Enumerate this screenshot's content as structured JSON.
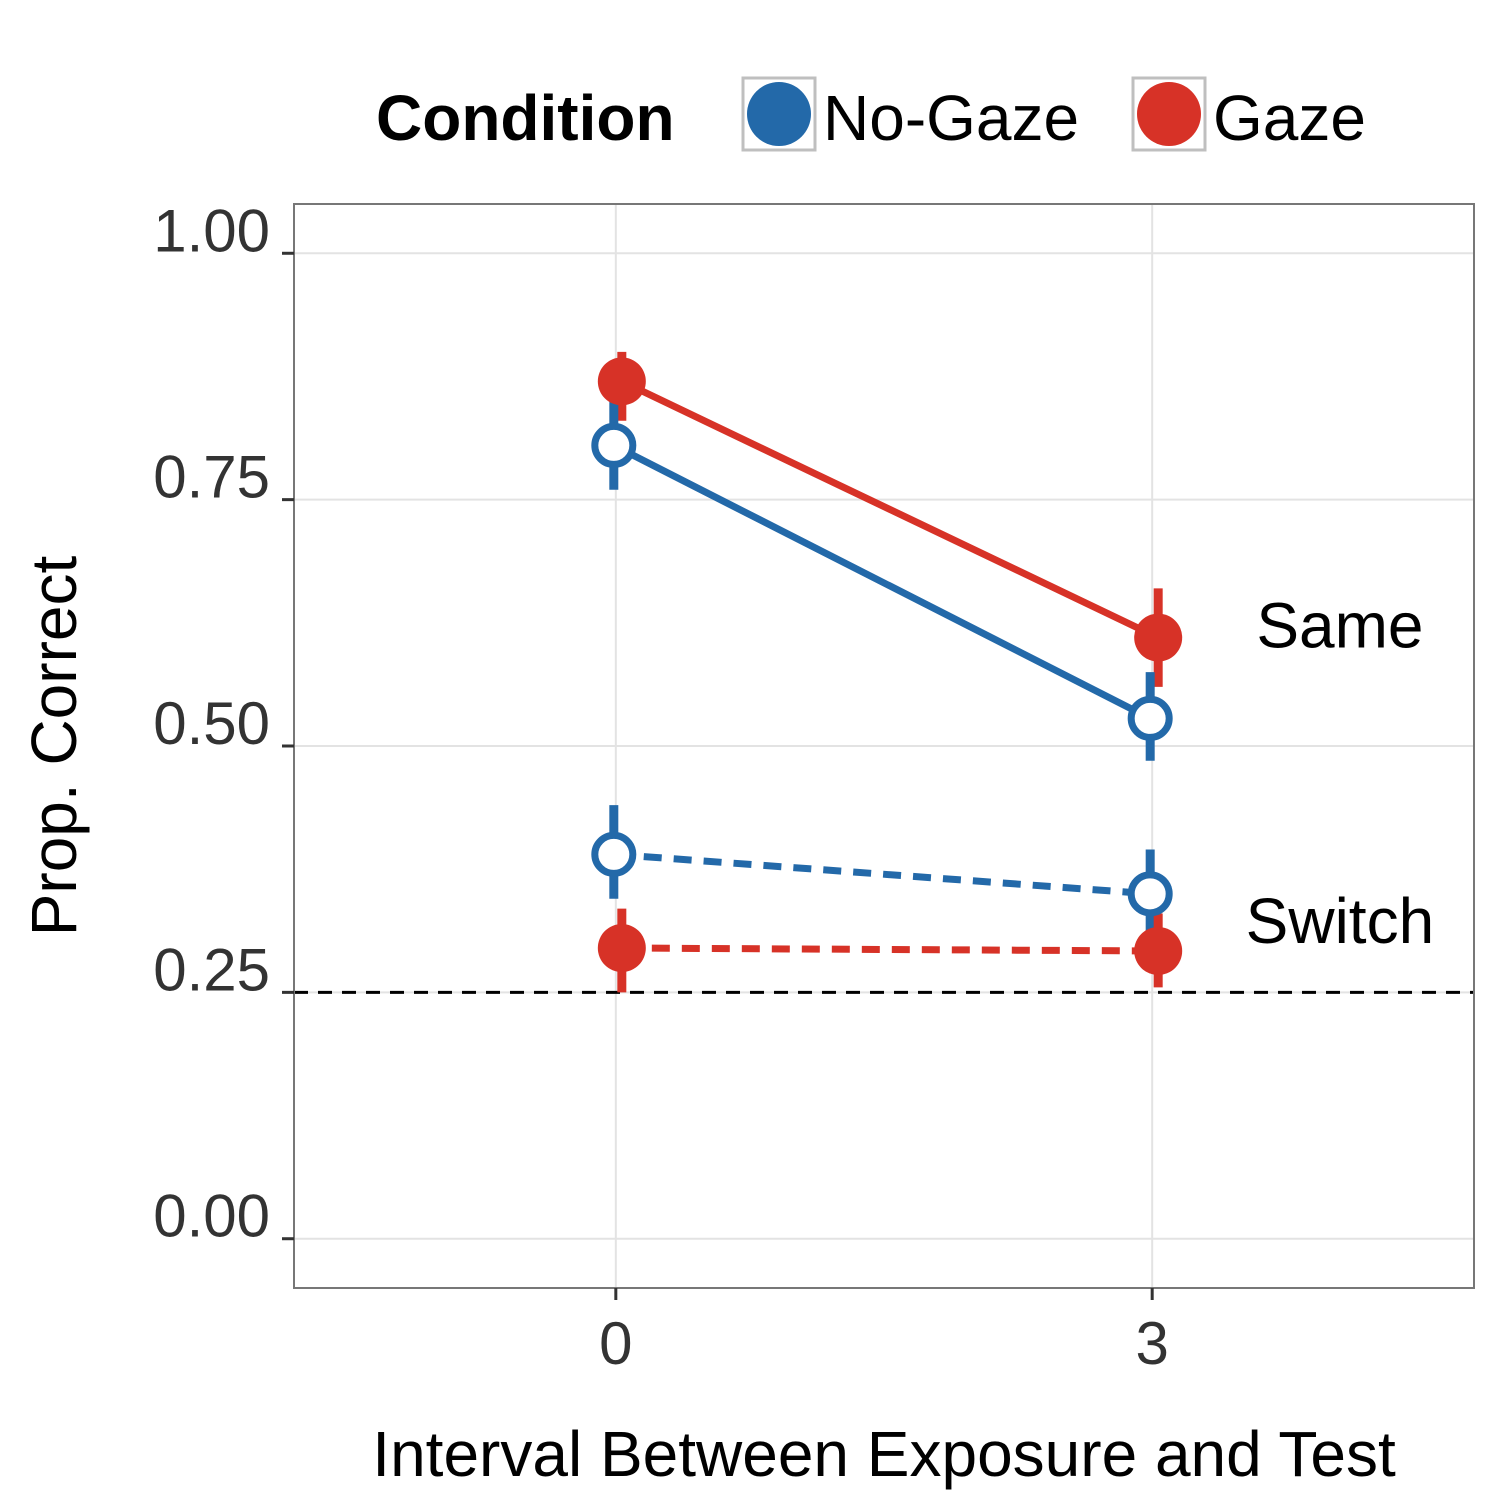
{
  "chart_data": {
    "type": "line",
    "xlabel": "Interval Between Exposure and Test",
    "ylabel": "Prop. Correct",
    "x_ticks": [
      "0",
      "3"
    ],
    "x_values": [
      0,
      3
    ],
    "xlim": [
      -1.8,
      4.8
    ],
    "ylim": [
      -0.05,
      1.05
    ],
    "y_ticks": [
      "0.00",
      "0.25",
      "0.50",
      "0.75",
      "1.00"
    ],
    "y_tick_values": [
      0,
      0.25,
      0.5,
      0.75,
      1.0
    ],
    "grid": true,
    "legend": {
      "title": "Condition",
      "position": "top",
      "entries": [
        {
          "name": "No-Gaze",
          "color": "#2369A9"
        },
        {
          "name": "Gaze",
          "color": "#D73227"
        }
      ]
    },
    "reference_line": {
      "y": 0.25,
      "style": "dashed",
      "color": "#000000"
    },
    "annotations": [
      {
        "text": "Same",
        "x": 4.05,
        "y": 0.6
      },
      {
        "text": "Switch",
        "x": 4.05,
        "y": 0.3
      }
    ],
    "series": [
      {
        "condition": "Gaze",
        "trial": "Same",
        "color": "#D73227",
        "filled": true,
        "dashed": false,
        "points": [
          {
            "x": 0,
            "y": 0.87,
            "lo": 0.83,
            "hi": 0.9
          },
          {
            "x": 3,
            "y": 0.61,
            "lo": 0.56,
            "hi": 0.66
          }
        ]
      },
      {
        "condition": "No-Gaze",
        "trial": "Same",
        "color": "#2369A9",
        "filled": false,
        "dashed": false,
        "points": [
          {
            "x": 0,
            "y": 0.805,
            "lo": 0.76,
            "hi": 0.85
          },
          {
            "x": 3,
            "y": 0.528,
            "lo": 0.485,
            "hi": 0.575
          }
        ]
      },
      {
        "condition": "No-Gaze",
        "trial": "Switch",
        "color": "#2369A9",
        "filled": false,
        "dashed": true,
        "points": [
          {
            "x": 0,
            "y": 0.39,
            "lo": 0.345,
            "hi": 0.44
          },
          {
            "x": 3,
            "y": 0.35,
            "lo": 0.31,
            "hi": 0.395
          }
        ]
      },
      {
        "condition": "Gaze",
        "trial": "Switch",
        "color": "#D73227",
        "filled": true,
        "dashed": true,
        "points": [
          {
            "x": 0,
            "y": 0.295,
            "lo": 0.25,
            "hi": 0.335
          },
          {
            "x": 3,
            "y": 0.292,
            "lo": 0.255,
            "hi": 0.33
          }
        ]
      }
    ]
  }
}
